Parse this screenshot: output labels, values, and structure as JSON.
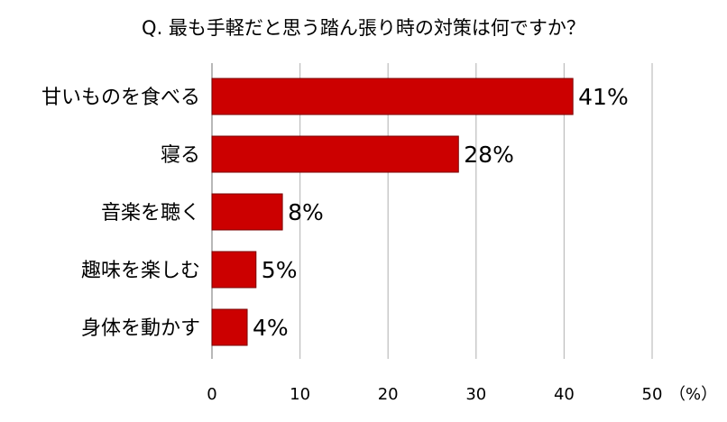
{
  "chart_data": {
    "type": "bar",
    "orientation": "horizontal",
    "title": "Q. 最も手軽だと思う踏ん張り時の対策は何ですか？",
    "categories": [
      "甘いものを食べる",
      "寝る",
      "音楽を聴く",
      "趣味を楽しむ",
      "身体を動かす"
    ],
    "values": [
      41,
      28,
      8,
      5,
      4
    ],
    "value_labels": [
      "41%",
      "28%",
      "8%",
      "5%",
      "4%"
    ],
    "xlim": [
      0,
      50
    ],
    "x_ticks": [
      0,
      10,
      20,
      30,
      40,
      50
    ],
    "x_tick_labels": [
      "0",
      "10",
      "20",
      "30",
      "40",
      "50"
    ],
    "x_unit": "（%）",
    "grid": true,
    "legend": "none",
    "colors": {
      "bar_fill": "#cc0000",
      "bar_stroke": "#7a0000",
      "grid": "#bdbdbd",
      "axis": "#888888"
    }
  }
}
